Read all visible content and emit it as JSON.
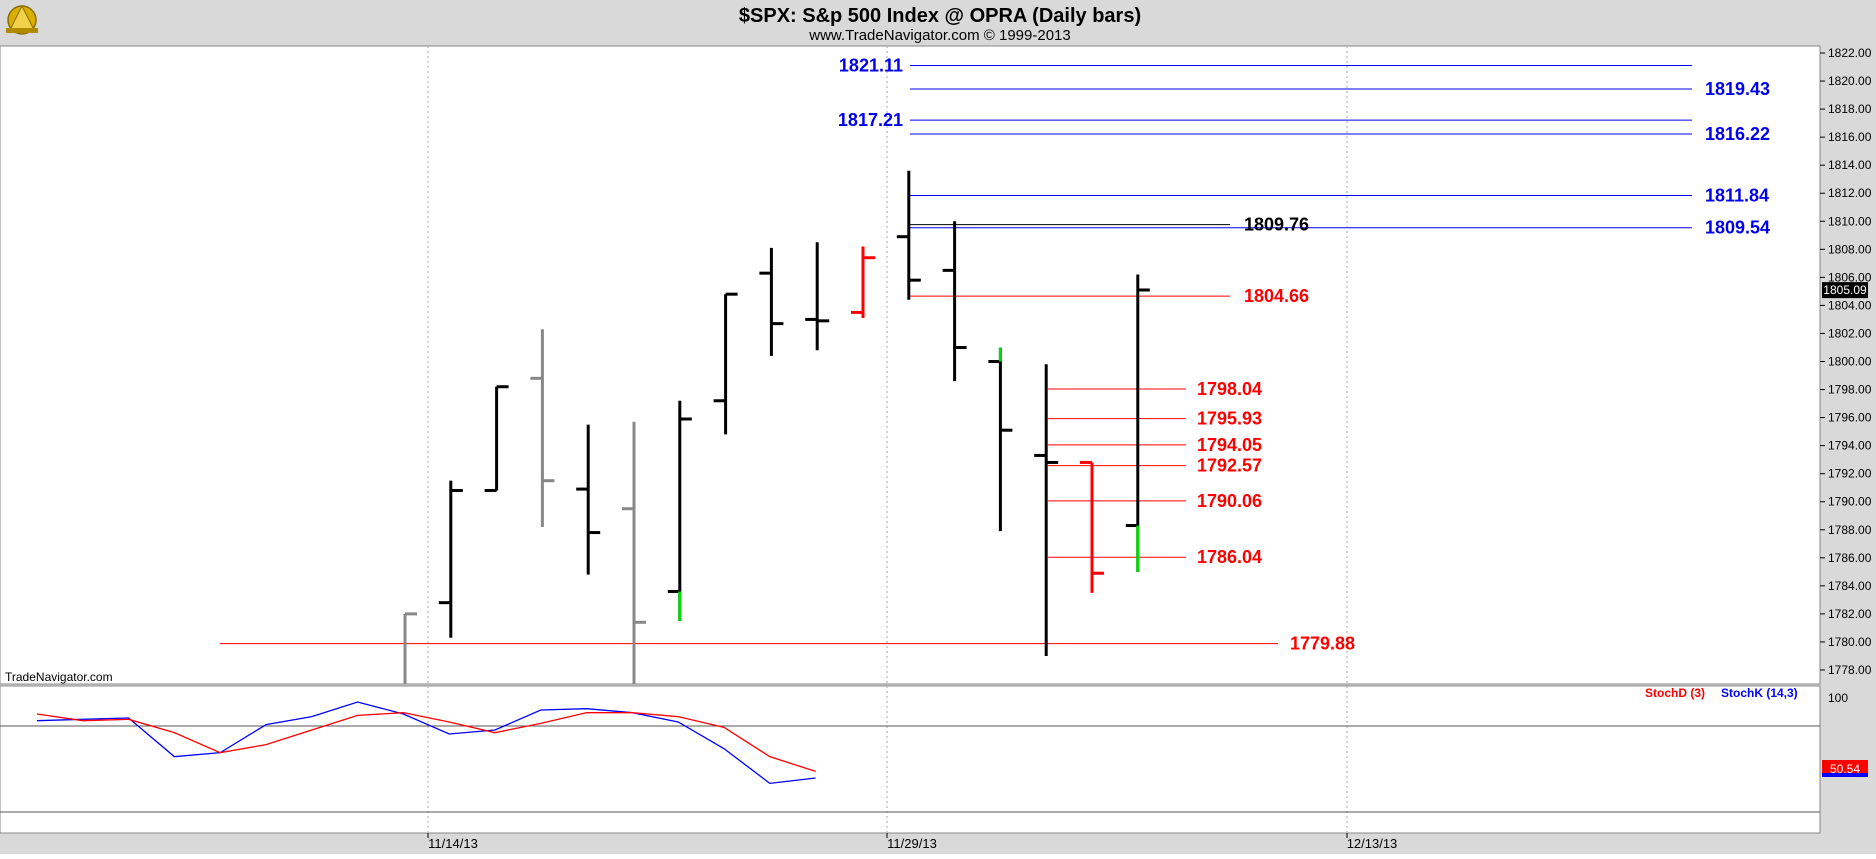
{
  "header": {
    "title": "$SPX:  S&p 500 Index @ OPRA  (Daily bars)",
    "subtitle": "www.TradeNavigator.com © 1999-2013"
  },
  "watermark": "TradeNavigator.com",
  "last_price_label": "1805.09",
  "stoch_value_label": "50.54",
  "colors": {
    "background": "#ffffff",
    "frame": "#d9d9d9",
    "bar_black": "#000000",
    "bar_gray": "#888888",
    "bar_red": "#ff0000",
    "bar_green": "#00dd00",
    "blue_level": "#0000ee",
    "red_level": "#ff0000",
    "black_level": "#000000",
    "stoch_k": "#0000ff",
    "stoch_d": "#ff0000"
  },
  "chart_data": [
    {
      "type": "ohlc",
      "ylim": [
        1777,
        1822.5
      ],
      "ticks": [
        "1778.00",
        "1780.00",
        "1782.00",
        "1784.00",
        "1786.00",
        "1788.00",
        "1790.00",
        "1792.00",
        "1794.00",
        "1796.00",
        "1798.00",
        "1800.00",
        "1802.00",
        "1804.00",
        "1806.00",
        "1808.00",
        "1810.00",
        "1812.00",
        "1814.00",
        "1816.00",
        "1818.00",
        "1820.00",
        "1822.00"
      ],
      "x_labels": [
        "11/14/13",
        "11/29/13",
        "12/13/13"
      ],
      "bars": [
        {
          "high": 1782.0,
          "low": 1777.0,
          "close": 1782.0,
          "color": "gray"
        },
        {
          "high": 1791.5,
          "low": 1780.3,
          "open": 1782.8,
          "close": 1790.8,
          "color": "black"
        },
        {
          "high": 1798.2,
          "low": 1790.8,
          "open": 1790.8,
          "close": 1798.2,
          "color": "black"
        },
        {
          "high": 1802.3,
          "low": 1788.2,
          "open": 1798.8,
          "close": 1791.5,
          "color": "gray"
        },
        {
          "high": 1795.5,
          "low": 1784.8,
          "open": 1790.9,
          "close": 1787.8,
          "color": "black"
        },
        {
          "high": 1795.7,
          "low": 1777.0,
          "open": 1789.5,
          "close": 1781.4,
          "color": "gray"
        },
        {
          "high": 1797.2,
          "low": 1781.5,
          "open": 1783.6,
          "close": 1795.9,
          "color": "black"
        },
        {
          "high": 1804.8,
          "low": 1794.8,
          "open": 1797.2,
          "close": 1804.8,
          "color": "black"
        },
        {
          "high": 1808.1,
          "low": 1800.4,
          "open": 1806.3,
          "close": 1802.7,
          "color": "black"
        },
        {
          "high": 1808.5,
          "low": 1800.8,
          "open": 1803.0,
          "close": 1802.9,
          "color": "black"
        },
        {
          "high": 1808.2,
          "low": 1803.1,
          "open": 1803.5,
          "close": 1807.4,
          "color": "red"
        },
        {
          "high": 1813.6,
          "low": 1804.4,
          "open": 1808.9,
          "close": 1805.8,
          "color": "black"
        },
        {
          "high": 1810.0,
          "low": 1798.6,
          "open": 1806.5,
          "close": 1801.0,
          "color": "black"
        },
        {
          "high": 1801.0,
          "low": 1787.9,
          "open": 1800.0,
          "close": 1795.1,
          "color": "black"
        },
        {
          "high": 1799.8,
          "low": 1779.0,
          "open": 1793.3,
          "close": 1792.8,
          "color": "black"
        },
        {
          "high": 1792.8,
          "low": 1783.5,
          "open": 1792.8,
          "close": 1784.9,
          "color": "red"
        },
        {
          "high": 1806.2,
          "low": 1785.0,
          "open": 1788.3,
          "close": 1805.1,
          "color": "black"
        }
      ],
      "bar_green_segments": [
        {
          "bar": 6,
          "from": 1783.6,
          "to": 1781.5
        },
        {
          "bar": 13,
          "from": 1801.0,
          "to": 1800.0
        },
        {
          "bar": 16,
          "from": 1788.3,
          "to": 1785.0
        }
      ],
      "levels": [
        {
          "value": 1821.11,
          "label": "1821.11",
          "color": "blue",
          "label_side": "left"
        },
        {
          "value": 1819.43,
          "label": "1819.43",
          "color": "blue",
          "label_side": "right"
        },
        {
          "value": 1817.21,
          "label": "1817.21",
          "color": "blue",
          "label_side": "left"
        },
        {
          "value": 1816.22,
          "label": "1816.22",
          "color": "blue",
          "label_side": "right"
        },
        {
          "value": 1811.84,
          "label": "1811.84",
          "color": "blue",
          "label_side": "right"
        },
        {
          "value": 1809.54,
          "label": "1809.54",
          "color": "blue",
          "label_side": "right"
        },
        {
          "value": 1809.76,
          "label": "1809.76",
          "color": "black",
          "label_side": "mid"
        },
        {
          "value": 1804.66,
          "label": "1804.66",
          "color": "red",
          "label_side": "mid"
        },
        {
          "value": 1798.04,
          "label": "1798.04",
          "color": "red",
          "label_side": "near"
        },
        {
          "value": 1795.93,
          "label": "1795.93",
          "color": "red",
          "label_side": "near"
        },
        {
          "value": 1794.05,
          "label": "1794.05",
          "color": "red",
          "label_side": "near"
        },
        {
          "value": 1792.57,
          "label": "1792.57",
          "color": "red",
          "label_side": "near"
        },
        {
          "value": 1790.06,
          "label": "1790.06",
          "color": "red",
          "label_side": "near"
        },
        {
          "value": 1786.04,
          "label": "1786.04",
          "color": "red",
          "label_side": "near"
        },
        {
          "value": 1779.88,
          "label": "1779.88",
          "color": "red",
          "label_side": "far"
        }
      ]
    },
    {
      "type": "line",
      "ylim": [
        0,
        105
      ],
      "tick": "100",
      "legend": [
        "StochD (3)",
        "StochK (14,3)"
      ],
      "series": [
        {
          "name": "StochK (14,3)",
          "values": [
            82,
            83,
            84,
            55,
            58,
            79,
            85,
            96,
            87,
            72,
            75,
            90,
            91,
            88,
            81,
            61,
            35,
            39
          ]
        },
        {
          "name": "StochD (3)",
          "values": [
            87,
            82,
            83,
            73,
            58,
            64,
            75,
            86,
            88,
            81,
            73,
            80,
            88,
            88,
            85,
            77,
            55,
            44
          ]
        }
      ]
    }
  ]
}
